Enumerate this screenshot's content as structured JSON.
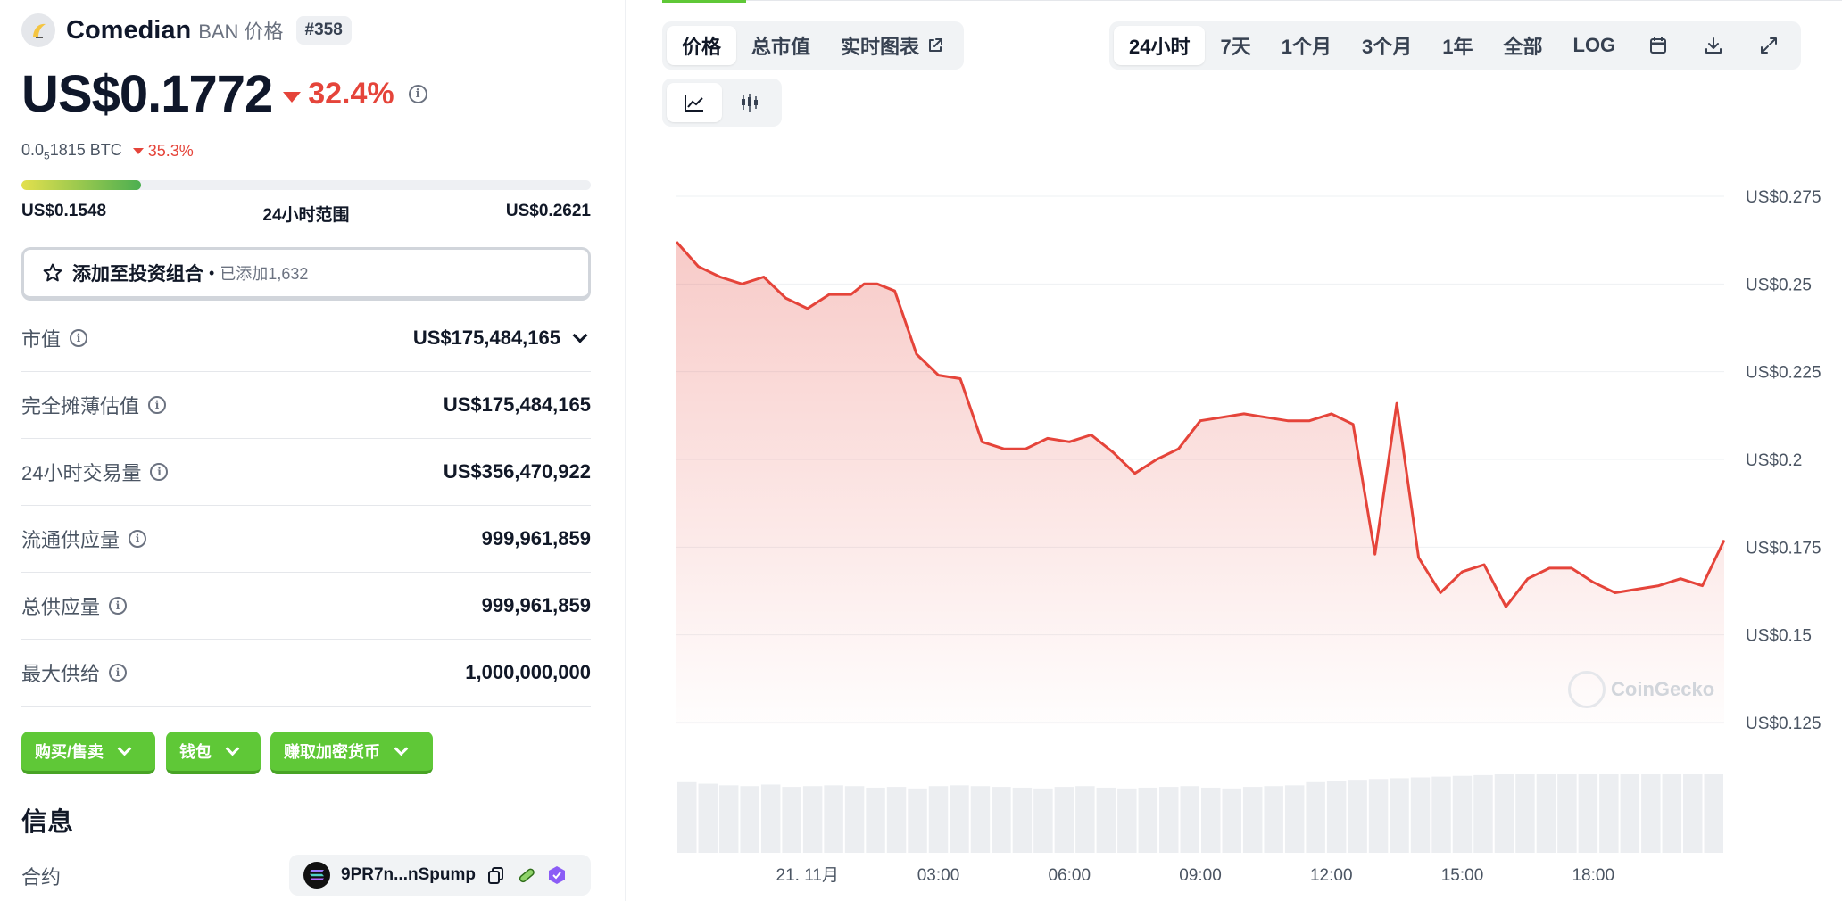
{
  "coin": {
    "name": "Comedian",
    "symbol_label": "BAN 价格",
    "rank": "#358",
    "price": "US$0.1772",
    "change_24h": "32.4%",
    "btc_price_prefix": "0.0",
    "btc_price_sub": "5",
    "btc_price_suffix": "1815 BTC",
    "btc_change": "35.3%"
  },
  "range": {
    "low": "US$0.1548",
    "label": "24小时范围",
    "high": "US$0.2621",
    "fill_fraction": 0.21
  },
  "portfolio": {
    "label": "添加至投资组合",
    "dot": "•",
    "count": "已添加1,632"
  },
  "stats": [
    {
      "label": "市值",
      "value": "US$175,484,165",
      "has_dropdown": true
    },
    {
      "label": "完全摊薄估值",
      "value": "US$175,484,165"
    },
    {
      "label": "24小时交易量",
      "value": "US$356,470,922"
    },
    {
      "label": "流通供应量",
      "value": "999,961,859"
    },
    {
      "label": "总供应量",
      "value": "999,961,859"
    },
    {
      "label": "最大供给",
      "value": "1,000,000,000"
    }
  ],
  "action_buttons": [
    "购买/售卖",
    "钱包",
    "赚取加密货币"
  ],
  "info": {
    "title": "信息",
    "contract_label": "合约",
    "contract_address": "9PR7n...nSpump"
  },
  "chart_tabs": [
    "价格",
    "总市值",
    "实时图表"
  ],
  "time_ranges": [
    "24小时",
    "7天",
    "1个月",
    "3个月",
    "1年",
    "全部",
    "LOG"
  ],
  "watermark": "CoinGecko",
  "colors": {
    "line": "#e5443a",
    "green": "#5fc837",
    "red": "#e5443a"
  },
  "chart_data": {
    "type": "line",
    "y_ticks": [
      "US$0.275",
      "US$0.25",
      "US$0.225",
      "US$0.2",
      "US$0.175",
      "US$0.15",
      "US$0.125"
    ],
    "x_ticks": [
      "21. 11月",
      "03:00",
      "06:00",
      "09:00",
      "12:00",
      "15:00",
      "18:00"
    ],
    "ylim": [
      0.125,
      0.275
    ],
    "x": [
      0,
      0.5,
      1,
      1.5,
      2,
      2.5,
      3,
      3.5,
      4,
      4.3,
      4.6,
      5,
      5.5,
      6,
      6.5,
      7,
      7.5,
      8,
      8.5,
      9,
      9.5,
      10,
      10.5,
      11,
      11.5,
      12,
      12.5,
      13,
      13.5,
      14,
      14.5,
      15,
      15.5,
      16,
      16.5,
      17,
      17.5,
      18,
      18.5,
      19,
      19.5,
      20,
      20.5,
      21,
      21.5,
      22,
      22.5,
      23,
      23.5,
      24
    ],
    "y": [
      0.262,
      0.255,
      0.252,
      0.25,
      0.252,
      0.246,
      0.243,
      0.247,
      0.247,
      0.25,
      0.25,
      0.248,
      0.23,
      0.224,
      0.223,
      0.205,
      0.203,
      0.203,
      0.206,
      0.205,
      0.207,
      0.202,
      0.196,
      0.2,
      0.203,
      0.211,
      0.212,
      0.213,
      0.212,
      0.211,
      0.211,
      0.213,
      0.21,
      0.173,
      0.216,
      0.172,
      0.162,
      0.168,
      0.17,
      0.158,
      0.166,
      0.169,
      0.169,
      0.165,
      0.162,
      0.163,
      0.164,
      0.166,
      0.164,
      0.177
    ],
    "volume": [
      0.9,
      0.88,
      0.86,
      0.85,
      0.87,
      0.84,
      0.85,
      0.86,
      0.85,
      0.83,
      0.84,
      0.82,
      0.85,
      0.86,
      0.85,
      0.84,
      0.83,
      0.82,
      0.84,
      0.85,
      0.83,
      0.82,
      0.83,
      0.84,
      0.85,
      0.83,
      0.82,
      0.84,
      0.85,
      0.86,
      0.9,
      0.92,
      0.93,
      0.94,
      0.95,
      0.96,
      0.97,
      0.98,
      0.99,
      1.0,
      1.0,
      1.0,
      1.0,
      1.0,
      1.0,
      1.0,
      1.0,
      1.0,
      1.0,
      1.0
    ]
  }
}
